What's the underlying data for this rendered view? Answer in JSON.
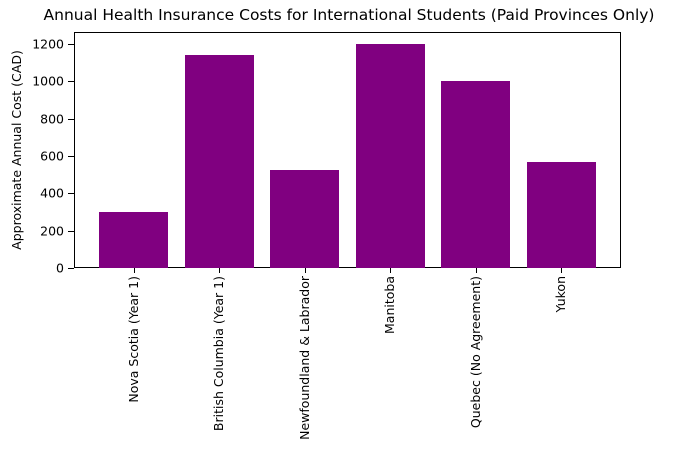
{
  "chart_data": {
    "type": "bar",
    "title": "Annual Health Insurance Costs for International Students (Paid Provinces Only)",
    "xlabel": "",
    "ylabel": "Approximate Annual Cost (CAD)",
    "categories": [
      "Nova Scotia (Year 1)",
      "British Columbia (Year 1)",
      "Newfoundland & Labrador",
      "Manitoba",
      "Quebec (No Agreement)",
      "Yukon"
    ],
    "values": [
      300,
      1140,
      525,
      1200,
      1000,
      570
    ],
    "ylim": [
      0,
      1260
    ],
    "yticks": [
      0,
      200,
      400,
      600,
      800,
      1000,
      1200
    ],
    "ytick_labels": [
      "0",
      "200",
      "400",
      "600",
      "800",
      "1000",
      "1200"
    ],
    "bar_color": "#800080",
    "grid": false,
    "legend": null,
    "xtick_rotation": 90
  }
}
